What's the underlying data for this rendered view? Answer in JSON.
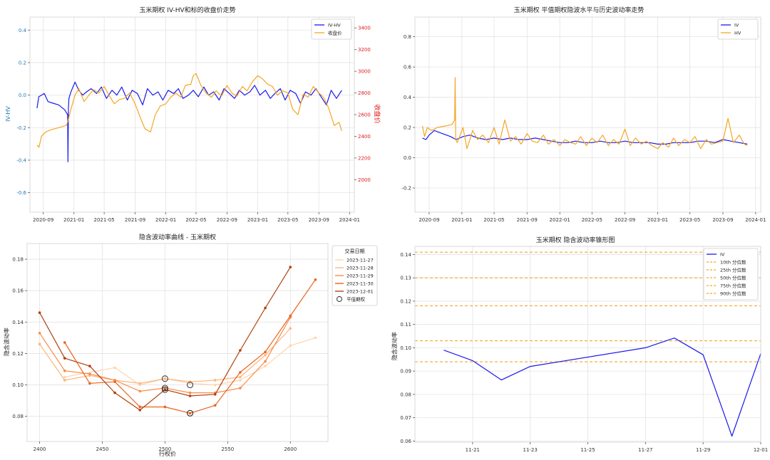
{
  "chart_data": [
    {
      "type": "line",
      "title": "玉米期权 IV-HV和标的收盘价走势",
      "ylabel": "IV-HV",
      "y2label": "收盘价",
      "ylim": [
        -0.72,
        0.48
      ],
      "y2lim": [
        1700,
        3500
      ],
      "yticks": [
        "0.4",
        "0.2",
        "0.0",
        "-0.2",
        "-0.4",
        "-0.6"
      ],
      "yticks_values": [
        0.4,
        0.2,
        0.0,
        -0.2,
        -0.4,
        -0.6
      ],
      "y2ticks": [
        "3400",
        "3200",
        "3000",
        "2800",
        "2600",
        "2400",
        "2200",
        "2000"
      ],
      "y2ticks_values": [
        3400,
        3200,
        3000,
        2800,
        2600,
        2400,
        2200,
        2000
      ],
      "xlim": [
        "2020-07-10",
        "2024-01-20"
      ],
      "xticks": [
        "2020-09",
        "2021-01",
        "2021-05",
        "2021-09",
        "2022-01",
        "2022-05",
        "2022-09",
        "2023-01",
        "2023-05",
        "2023-09",
        "2024-01"
      ],
      "xticks_dates": [
        "2020-09-01",
        "2021-01-01",
        "2021-05-01",
        "2021-09-01",
        "2022-01-01",
        "2022-05-01",
        "2022-09-01",
        "2023-01-01",
        "2023-05-01",
        "2023-09-01",
        "2024-01-01"
      ],
      "legend": "upper right",
      "grid": true,
      "series": [
        {
          "name": "IV-HV",
          "color": "#1a1aee",
          "axis": "left",
          "x": [
            "2020-08-07",
            "2020-08-14",
            "2020-08-25",
            "2020-09-05",
            "2020-09-20",
            "2020-10-10",
            "2020-11-01",
            "2020-11-25",
            "2020-12-07",
            "2020-12-08",
            "2020-12-10",
            "2020-12-12",
            "2020-12-20",
            "2021-01-05",
            "2021-01-20",
            "2021-02-05",
            "2021-02-20",
            "2021-03-10",
            "2021-04-01",
            "2021-04-20",
            "2021-05-10",
            "2021-06-01",
            "2021-06-20",
            "2021-07-10",
            "2021-08-01",
            "2021-08-20",
            "2021-09-10",
            "2021-10-01",
            "2021-10-20",
            "2021-11-10",
            "2021-12-01",
            "2021-12-20",
            "2022-01-10",
            "2022-02-01",
            "2022-02-20",
            "2022-03-10",
            "2022-04-01",
            "2022-04-20",
            "2022-05-10",
            "2022-06-01",
            "2022-06-20",
            "2022-07-10",
            "2022-08-01",
            "2022-08-20",
            "2022-09-10",
            "2022-10-01",
            "2022-10-20",
            "2022-11-10",
            "2022-12-01",
            "2022-12-20",
            "2023-01-10",
            "2023-02-01",
            "2023-02-20",
            "2023-03-10",
            "2023-04-01",
            "2023-04-20",
            "2023-05-10",
            "2023-06-01",
            "2023-06-20",
            "2023-07-10",
            "2023-08-01",
            "2023-08-20",
            "2023-09-10",
            "2023-10-01",
            "2023-10-20",
            "2023-11-10",
            "2023-12-01"
          ],
          "values": [
            -0.08,
            -0.01,
            0.0,
            0.01,
            -0.04,
            -0.05,
            -0.06,
            -0.09,
            -0.12,
            -0.41,
            -0.08,
            -0.02,
            0.02,
            0.08,
            0.03,
            0.0,
            0.02,
            0.04,
            0.01,
            0.05,
            -0.02,
            0.03,
            0.0,
            0.05,
            -0.03,
            0.03,
            0.01,
            -0.06,
            0.04,
            0.0,
            0.02,
            -0.03,
            0.03,
            0.01,
            0.04,
            -0.02,
            0.0,
            0.03,
            -0.01,
            0.05,
            0.0,
            0.02,
            -0.03,
            0.04,
            0.01,
            -0.02,
            0.03,
            0.0,
            0.02,
            0.06,
            0.0,
            0.03,
            -0.02,
            0.01,
            0.04,
            -0.03,
            0.03,
            0.01,
            -0.05,
            0.02,
            0.0,
            0.04,
            -0.01,
            -0.06,
            0.03,
            -0.02,
            0.03
          ]
        },
        {
          "name": "收盘价",
          "color": "#f5a623",
          "axis": "right",
          "x": [
            "2020-08-07",
            "2020-08-15",
            "2020-08-25",
            "2020-09-10",
            "2020-10-01",
            "2020-11-01",
            "2020-12-01",
            "2020-12-07",
            "2020-12-10",
            "2020-12-20",
            "2021-01-05",
            "2021-01-20",
            "2021-02-10",
            "2021-03-01",
            "2021-03-20",
            "2021-04-10",
            "2021-05-01",
            "2021-05-20",
            "2021-06-10",
            "2021-07-01",
            "2021-07-20",
            "2021-08-10",
            "2021-09-01",
            "2021-09-20",
            "2021-10-10",
            "2021-11-01",
            "2021-11-20",
            "2021-12-10",
            "2022-01-01",
            "2022-01-20",
            "2022-02-10",
            "2022-03-01",
            "2022-03-20",
            "2022-04-10",
            "2022-04-20",
            "2022-05-01",
            "2022-05-20",
            "2022-06-10",
            "2022-07-01",
            "2022-07-20",
            "2022-08-10",
            "2022-09-01",
            "2022-09-20",
            "2022-10-10",
            "2022-11-01",
            "2022-11-20",
            "2022-12-10",
            "2023-01-01",
            "2023-01-20",
            "2023-02-10",
            "2023-03-01",
            "2023-03-20",
            "2023-04-10",
            "2023-05-01",
            "2023-05-20",
            "2023-06-10",
            "2023-07-01",
            "2023-07-20",
            "2023-08-10",
            "2023-09-01",
            "2023-09-20",
            "2023-10-10",
            "2023-11-01",
            "2023-11-20",
            "2023-12-01"
          ],
          "values": [
            2320,
            2300,
            2400,
            2440,
            2460,
            2480,
            2500,
            2530,
            2560,
            2650,
            2780,
            2840,
            2720,
            2780,
            2830,
            2800,
            2860,
            2780,
            2700,
            2740,
            2750,
            2800,
            2700,
            2580,
            2470,
            2440,
            2600,
            2680,
            2700,
            2760,
            2800,
            2760,
            2870,
            2880,
            2960,
            2980,
            2870,
            2800,
            2760,
            2820,
            2770,
            2870,
            2800,
            2770,
            2860,
            2820,
            2900,
            2960,
            2930,
            2880,
            2860,
            2780,
            2820,
            2800,
            2650,
            2600,
            2790,
            2760,
            2860,
            2800,
            2760,
            2660,
            2500,
            2530,
            2450
          ]
        }
      ]
    },
    {
      "type": "line",
      "title": "玉米期权 平值期权隐波水平与历史波动率走势",
      "ylim": [
        -0.36,
        0.93
      ],
      "yticks": [
        "0.8",
        "0.6",
        "0.4",
        "0.2",
        "0.0",
        "-0.2"
      ],
      "yticks_values": [
        0.8,
        0.6,
        0.4,
        0.2,
        0.0,
        -0.2
      ],
      "xlim": [
        "2020-07-10",
        "2024-01-20"
      ],
      "xticks": [
        "2020-09",
        "2021-01",
        "2021-05",
        "2021-09",
        "2022-01",
        "2022-05",
        "2022-09",
        "2023-01",
        "2023-05",
        "2023-09",
        "2024-01"
      ],
      "xticks_dates": [
        "2020-09-01",
        "2021-01-01",
        "2021-05-01",
        "2021-09-01",
        "2022-01-01",
        "2022-05-01",
        "2022-09-01",
        "2023-01-01",
        "2023-05-01",
        "2023-09-01",
        "2024-01-01"
      ],
      "legend": "upper right",
      "grid": true,
      "series": [
        {
          "name": "IV",
          "color": "#1a1aee",
          "x": [
            "2020-08-07",
            "2020-08-20",
            "2020-09-01",
            "2020-09-20",
            "2020-10-20",
            "2020-11-20",
            "2020-12-10",
            "2021-01-05",
            "2021-02-01",
            "2021-03-01",
            "2021-04-01",
            "2021-05-01",
            "2021-06-01",
            "2021-07-01",
            "2021-08-01",
            "2021-09-01",
            "2021-10-01",
            "2021-11-01",
            "2021-12-01",
            "2022-01-01",
            "2022-02-01",
            "2022-03-01",
            "2022-04-01",
            "2022-05-01",
            "2022-06-01",
            "2022-07-01",
            "2022-08-01",
            "2022-09-01",
            "2022-10-01",
            "2022-11-01",
            "2022-12-01",
            "2023-01-01",
            "2023-02-01",
            "2023-03-01",
            "2023-04-01",
            "2023-05-01",
            "2023-06-01",
            "2023-07-01",
            "2023-08-01",
            "2023-09-01",
            "2023-10-01",
            "2023-11-01",
            "2023-12-01"
          ],
          "values": [
            0.13,
            0.12,
            0.15,
            0.18,
            0.16,
            0.14,
            0.12,
            0.14,
            0.15,
            0.13,
            0.12,
            0.13,
            0.12,
            0.13,
            0.12,
            0.12,
            0.13,
            0.12,
            0.11,
            0.1,
            0.1,
            0.11,
            0.1,
            0.1,
            0.11,
            0.1,
            0.1,
            0.11,
            0.1,
            0.1,
            0.1,
            0.09,
            0.09,
            0.1,
            0.1,
            0.1,
            0.11,
            0.11,
            0.1,
            0.12,
            0.11,
            0.1,
            0.09
          ]
        },
        {
          "name": "HV",
          "color": "#f5a623",
          "x": [
            "2020-08-07",
            "2020-08-15",
            "2020-08-25",
            "2020-09-10",
            "2020-10-01",
            "2020-11-01",
            "2020-11-25",
            "2020-12-05",
            "2020-12-07",
            "2020-12-09",
            "2020-12-15",
            "2021-01-05",
            "2021-01-20",
            "2021-02-10",
            "2021-03-01",
            "2021-03-20",
            "2021-04-10",
            "2021-05-01",
            "2021-05-20",
            "2021-06-10",
            "2021-07-01",
            "2021-07-20",
            "2021-08-10",
            "2021-09-01",
            "2021-09-20",
            "2021-10-10",
            "2021-11-01",
            "2021-11-20",
            "2021-12-10",
            "2022-01-01",
            "2022-01-20",
            "2022-02-10",
            "2022-03-01",
            "2022-03-20",
            "2022-04-10",
            "2022-05-01",
            "2022-05-20",
            "2022-06-10",
            "2022-07-01",
            "2022-07-20",
            "2022-08-10",
            "2022-09-01",
            "2022-09-20",
            "2022-10-10",
            "2022-11-01",
            "2022-11-20",
            "2022-12-10",
            "2023-01-01",
            "2023-01-20",
            "2023-02-10",
            "2023-03-01",
            "2023-03-20",
            "2023-04-10",
            "2023-05-01",
            "2023-05-20",
            "2023-06-10",
            "2023-07-01",
            "2023-07-20",
            "2023-08-10",
            "2023-09-01",
            "2023-09-20",
            "2023-10-10",
            "2023-11-01",
            "2023-11-20",
            "2023-12-01"
          ],
          "values": [
            0.21,
            0.14,
            0.2,
            0.18,
            0.2,
            0.21,
            0.22,
            0.25,
            0.53,
            0.12,
            0.1,
            0.2,
            0.06,
            0.18,
            0.12,
            0.15,
            0.1,
            0.2,
            0.09,
            0.25,
            0.11,
            0.14,
            0.09,
            0.16,
            0.11,
            0.1,
            0.15,
            0.09,
            0.12,
            0.08,
            0.12,
            0.1,
            0.09,
            0.14,
            0.08,
            0.13,
            0.1,
            0.15,
            0.08,
            0.12,
            0.09,
            0.19,
            0.08,
            0.13,
            0.09,
            0.11,
            0.08,
            0.06,
            0.1,
            0.07,
            0.13,
            0.08,
            0.12,
            0.1,
            0.14,
            0.06,
            0.12,
            0.09,
            0.1,
            0.11,
            0.26,
            0.1,
            0.15,
            0.09,
            0.08
          ]
        }
      ]
    },
    {
      "type": "line",
      "title": "隐含波动率曲线 - 玉米期权",
      "xlabel": "行权价",
      "ylabel": "隐含波动率",
      "xlim": [
        2390,
        2630
      ],
      "ylim": [
        0.064,
        0.19
      ],
      "xticks": [
        "2400",
        "2450",
        "2500",
        "2550",
        "2600"
      ],
      "xticks_values": [
        2400,
        2450,
        2500,
        2550,
        2600
      ],
      "yticks": [
        "0.18",
        "0.16",
        "0.14",
        "0.12",
        "0.10",
        "0.08"
      ],
      "yticks_values": [
        0.18,
        0.16,
        0.14,
        0.12,
        0.1,
        0.08
      ],
      "legend_title": "交易日期",
      "legend": "outside upper right",
      "grid": true,
      "series": [
        {
          "name": "2023-11-27",
          "color": "#fdd5ad",
          "x": [
            2420,
            2460,
            2480,
            2500,
            2520,
            2540,
            2560,
            2580,
            2600,
            2620
          ],
          "values": [
            0.105,
            0.111,
            0.1,
            0.104,
            0.101,
            0.1,
            0.103,
            0.112,
            0.125,
            0.13
          ]
        },
        {
          "name": "2023-11-28",
          "color": "#fdb57e",
          "x": [
            2400,
            2420,
            2440,
            2460,
            2480,
            2500,
            2520,
            2540,
            2560,
            2580,
            2600
          ],
          "values": [
            0.126,
            0.103,
            0.106,
            0.103,
            0.101,
            0.104,
            0.102,
            0.103,
            0.105,
            0.119,
            0.136
          ]
        },
        {
          "name": "2023-11-29",
          "color": "#fb8b47",
          "x": [
            2400,
            2420,
            2440,
            2460,
            2480,
            2500,
            2520,
            2540,
            2560,
            2580,
            2600
          ],
          "values": [
            0.133,
            0.109,
            0.107,
            0.103,
            0.096,
            0.098,
            0.095,
            0.095,
            0.098,
            0.115,
            0.143
          ]
        },
        {
          "name": "2023-11-30",
          "color": "#e9621c",
          "x": [
            2420,
            2440,
            2460,
            2480,
            2500,
            2520,
            2540,
            2560,
            2580,
            2600,
            2620
          ],
          "values": [
            0.127,
            0.101,
            0.102,
            0.086,
            0.086,
            0.082,
            0.087,
            0.108,
            0.121,
            0.144,
            0.167
          ]
        },
        {
          "name": "2023-12-01",
          "color": "#b0410d",
          "x": [
            2400,
            2420,
            2440,
            2460,
            2480,
            2500,
            2520,
            2540,
            2560,
            2580,
            2600
          ],
          "values": [
            0.146,
            0.117,
            0.112,
            0.095,
            0.084,
            0.097,
            0.093,
            0.094,
            0.122,
            0.149,
            0.175
          ]
        }
      ],
      "atm_markers": {
        "name": "平值期权",
        "x": [
          2500,
          2500,
          2500,
          2520,
          2520,
          2520
        ],
        "values": [
          0.104,
          0.098,
          0.097,
          0.1,
          0.082,
          0.082
        ]
      }
    },
    {
      "type": "line",
      "title": "玉米期权 隐含波动率锥形图",
      "ylabel": "隐含波动率",
      "xlim": [
        "2023-11-19",
        "2023-12-01"
      ],
      "ylim": [
        0.0595,
        0.1435
      ],
      "xticks": [
        "11-21",
        "11-23",
        "11-25",
        "11-27",
        "11-29",
        "12-01"
      ],
      "xticks_dates": [
        "2023-11-21",
        "2023-11-23",
        "2023-11-25",
        "2023-11-27",
        "2023-11-29",
        "2023-12-01"
      ],
      "yticks": [
        "0.14",
        "0.13",
        "0.12",
        "0.11",
        "0.10",
        "0.09",
        "0.08",
        "0.07",
        "0.06"
      ],
      "yticks_values": [
        0.14,
        0.13,
        0.12,
        0.11,
        0.1,
        0.09,
        0.08,
        0.07,
        0.06
      ],
      "legend": "upper right",
      "grid": true,
      "series": [
        {
          "name": "IV",
          "color": "#1a1aee",
          "x": [
            "2023-11-20",
            "2023-11-21",
            "2023-11-22",
            "2023-11-23",
            "2023-11-27",
            "2023-11-28",
            "2023-11-29",
            "2023-11-30",
            "2023-12-01"
          ],
          "values": [
            0.099,
            0.0945,
            0.0862,
            0.092,
            0.1,
            0.1042,
            0.097,
            0.0621,
            0.0975
          ]
        }
      ],
      "percentiles": [
        {
          "name": "10th 分位数",
          "value": 0.094
        },
        {
          "name": "25th 分位数",
          "value": 0.103
        },
        {
          "name": "50th 分位数",
          "value": 0.118
        },
        {
          "name": "75th 分位数",
          "value": 0.13
        },
        {
          "name": "90th 分位数",
          "value": 0.141
        }
      ],
      "percentile_color": "#f5a623"
    }
  ]
}
